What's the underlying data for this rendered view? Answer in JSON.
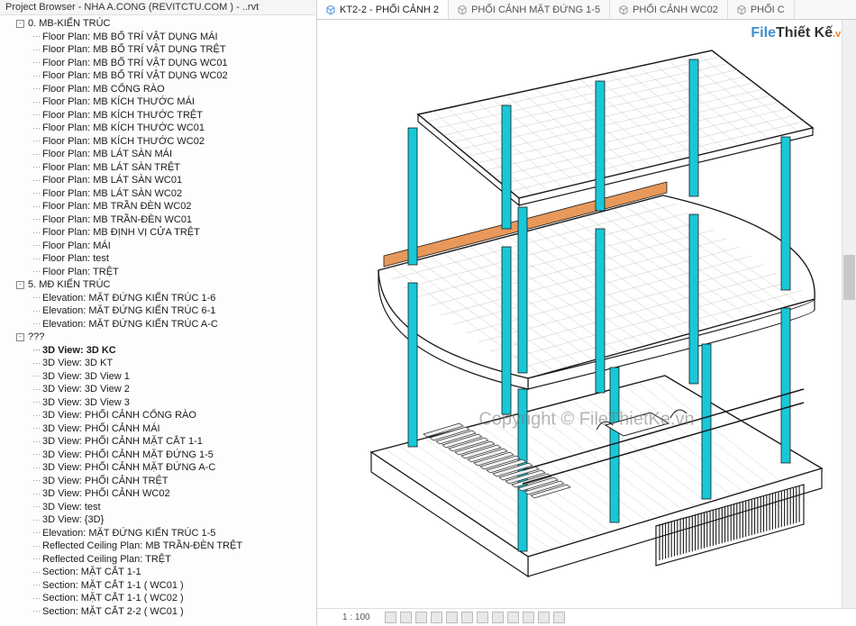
{
  "sidebar": {
    "title": "Project Browser - NHA A.CONG (REVITCTU.COM ) - ..rvt",
    "groups": [
      {
        "expander": "-",
        "label": "0. MB-KIẾN TRÚC",
        "children": [
          "Floor Plan: MB BỐ TRÍ VẬT DỤNG MÁI",
          "Floor Plan: MB BỐ TRÍ VẬT DỤNG TRỆT",
          "Floor Plan: MB BỐ TRÍ VẬT DỤNG WC01",
          "Floor Plan: MB BỐ TRÍ VẬT DỤNG WC02",
          "Floor Plan: MB CỔNG RÀO",
          "Floor Plan: MB KÍCH THƯỚC MÁI",
          "Floor Plan: MB KÍCH THƯỚC TRỆT",
          "Floor Plan: MB KÍCH THƯỚC WC01",
          "Floor Plan: MB KÍCH THƯỚC WC02",
          "Floor Plan: MB LÁT SÀN MÁI",
          "Floor Plan: MB LÁT SÀN TRỆT",
          "Floor Plan: MB LÁT SÀN WC01",
          "Floor Plan: MB LÁT SÀN WC02",
          "Floor Plan: MB TRẦN ĐÈN WC02",
          "Floor Plan: MB TRẦN-ĐÈN WC01",
          "Floor Plan: MB ĐỊNH VỊ CỬA TRỆT",
          "Floor Plan: MÁI",
          "Floor Plan: test",
          "Floor Plan: TRỆT"
        ]
      },
      {
        "expander": "-",
        "label": "5. MĐ KIẾN TRÚC",
        "children": [
          "Elevation: MẶT ĐỨNG KIẾN TRÚC 1-6",
          "Elevation: MẶT ĐỨNG KIẾN TRÚC  6-1",
          "Elevation: MẶT ĐỨNG KIẾN TRÚC A-C"
        ]
      },
      {
        "expander": "-",
        "label": "???",
        "children_mixed": [
          {
            "t": "3D View: 3D KC",
            "bold": true
          },
          {
            "t": "3D View: 3D KT"
          },
          {
            "t": "3D View: 3D View 1"
          },
          {
            "t": "3D View: 3D View 2"
          },
          {
            "t": "3D View: 3D View 3"
          },
          {
            "t": "3D View: PHỐI CẢNH CỔNG RÀO"
          },
          {
            "t": "3D View: PHỐI CẢNH MÁI"
          },
          {
            "t": "3D View: PHỐI CẢNH MẶT CẮT 1-1"
          },
          {
            "t": "3D View: PHỐI CẢNH MẶT ĐỨNG 1-5"
          },
          {
            "t": "3D View: PHỐI CẢNH MẶT ĐỨNG A-C"
          },
          {
            "t": "3D View: PHỐI CẢNH TRỆT"
          },
          {
            "t": "3D View: PHỐI CẢNH WC02"
          },
          {
            "t": "3D View: test"
          },
          {
            "t": "3D View: {3D}"
          },
          {
            "t": "Elevation: MẶT ĐỨNG KIẾN TRÚC 1-5"
          },
          {
            "t": "Reflected Ceiling Plan: MB TRẦN-ĐÈN TRỆT"
          },
          {
            "t": "Reflected Ceiling Plan: TRỆT"
          },
          {
            "t": "Section: MẶT CẮT 1-1"
          },
          {
            "t": "Section: MẶT CẮT 1-1 ( WC01 )"
          },
          {
            "t": "Section: MẶT CẮT 1-1 ( WC02 )"
          },
          {
            "t": "Section: MẶT CẮT 2-2 ( WC01 )"
          }
        ]
      }
    ]
  },
  "tabs": [
    {
      "label": "KT2-2 - PHỐI CẢNH 2",
      "active": true,
      "icon_color": "#4a90d9"
    },
    {
      "label": "PHỐI CẢNH MẶT ĐỨNG 1-5",
      "icon_color": "#999"
    },
    {
      "label": "PHỐI CẢNH WC02",
      "icon_color": "#999"
    },
    {
      "label": "PHỐI C",
      "icon_color": "#999"
    }
  ],
  "watermark_logo": {
    "p1": "File",
    "p2": "Thiết Kế",
    "suffix": ".vn"
  },
  "watermark_center": "Copyright © FileThietKe.vn",
  "statusbar": {
    "scale_label": "1 : 100",
    "icon_count": 12
  },
  "model": {
    "description": "Isometric architectural 3D view of two-storey structure with cyan columns",
    "column_color": "#18c8d8",
    "beam_color": "#e8985a",
    "line_color": "#1a1a1a",
    "grid_color": "#bcbcbc",
    "staircase_color": "#2a2a2a",
    "grille_color": "#1a1a1a"
  }
}
